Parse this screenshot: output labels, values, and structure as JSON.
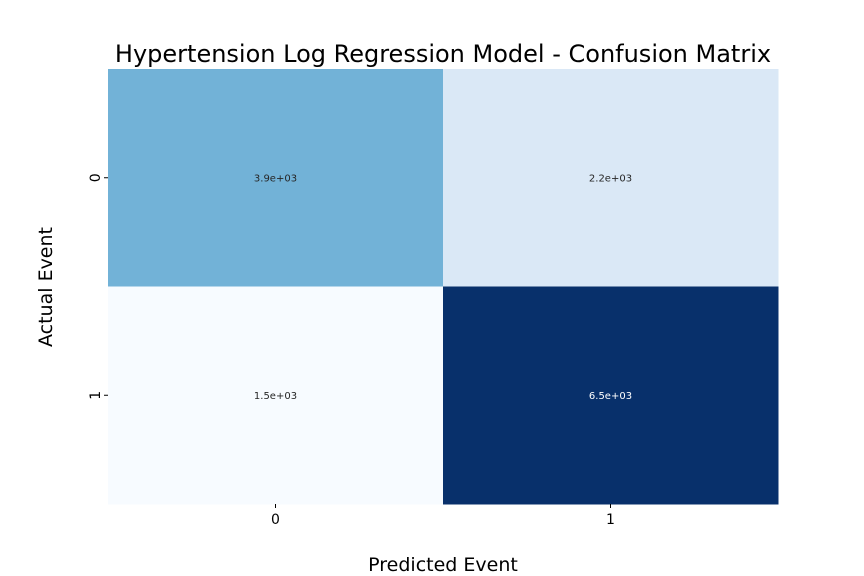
{
  "chart_data": {
    "type": "heatmap",
    "title": "Hypertension Log Regression Model - Confusion Matrix",
    "xlabel": "Predicted Event",
    "ylabel": "Actual Event",
    "x_categories": [
      "0",
      "1"
    ],
    "y_categories": [
      "0",
      "1"
    ],
    "values": [
      [
        3900,
        2200
      ],
      [
        1500,
        6500
      ]
    ],
    "annotations": [
      [
        "3.9e+03",
        "2.2e+03"
      ],
      [
        "1.5e+03",
        "6.5e+03"
      ]
    ],
    "colormap": "Blues",
    "cell_colors": [
      [
        "#72b2d7",
        "#dae8f6"
      ],
      [
        "#f7fbff",
        "#08306b"
      ]
    ],
    "annotation_colors": [
      [
        "#262626",
        "#262626"
      ],
      [
        "#262626",
        "#ffffff"
      ]
    ],
    "colorbar": false
  }
}
